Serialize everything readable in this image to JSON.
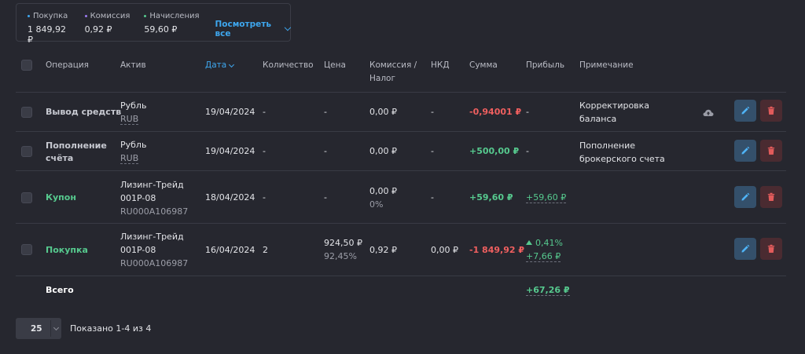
{
  "summary": {
    "items": [
      {
        "label": "Покупка",
        "value": "1 849,92 ₽",
        "dot_color": "#3ea7ef"
      },
      {
        "label": "Комиссия",
        "value": "0,92 ₽",
        "dot_color": "#9b7bf0"
      },
      {
        "label": "Начисления",
        "value": "59,60 ₽",
        "dot_color": "#56c98e"
      }
    ],
    "view_all": "Посмотреть все"
  },
  "table": {
    "headers": {
      "operation": "Операция",
      "asset": "Актив",
      "date": "Дата",
      "quantity": "Количество",
      "price": "Цена",
      "commission_1": "Комиссия /",
      "commission_2": "Налог",
      "nkd": "НКД",
      "sum": "Сумма",
      "profit": "Прибыль",
      "note": "Примечание"
    },
    "rows": [
      {
        "operation": "Вывод средств",
        "asset_name": "Рубль",
        "asset_code": "RUB",
        "date": "19/04/2024",
        "quantity": "-",
        "price": "-",
        "commission": "0,00 ₽",
        "nkd": "-",
        "sum": "-0,94001 ₽",
        "profit": "-",
        "note_1": "Корректировка",
        "note_2": "баланса"
      },
      {
        "operation_1": "Пополнение",
        "operation_2": "счёта",
        "asset_name": "Рубль",
        "asset_code": "RUB",
        "date": "19/04/2024",
        "quantity": "-",
        "price": "-",
        "commission": "0,00 ₽",
        "nkd": "-",
        "sum": "+500,00 ₽",
        "profit": "-",
        "note_1": "Пополнение",
        "note_2": "брокерского счета"
      },
      {
        "operation": "Купон",
        "asset_name_1": "Лизинг-Трейд",
        "asset_name_2": "001P-08",
        "asset_code": "RU000A106987",
        "date": "18/04/2024",
        "quantity": "-",
        "price": "-",
        "commission": "0,00 ₽",
        "commission_pct": "0%",
        "nkd": "-",
        "sum": "+59,60 ₽",
        "profit": "+59,60 ₽"
      },
      {
        "operation": "Покупка",
        "asset_name_1": "Лизинг-Трейд",
        "asset_name_2": "001P-08",
        "asset_code": "RU000A106987",
        "date": "16/04/2024",
        "quantity": "2",
        "price": "924,50 ₽",
        "price_pct": "92,45%",
        "commission": "0,92 ₽",
        "nkd": "0,00 ₽",
        "sum": "-1 849,92 ₽",
        "profit_pct": "0,41%",
        "profit": "+7,66 ₽"
      }
    ],
    "total_label": "Всего",
    "total_profit": "+67,26 ₽"
  },
  "pagination": {
    "per_page": "25",
    "shown": "Показано 1-4 из 4"
  },
  "colors": {
    "accent": "#3ea7ef",
    "positive": "#56c98e",
    "negative": "#ef5f5f",
    "background": "#26272f"
  },
  "icons": {
    "edit": "pencil-icon",
    "delete": "trash-icon",
    "cloud": "cloud-upload-icon",
    "sort": "chevron-down-icon"
  }
}
